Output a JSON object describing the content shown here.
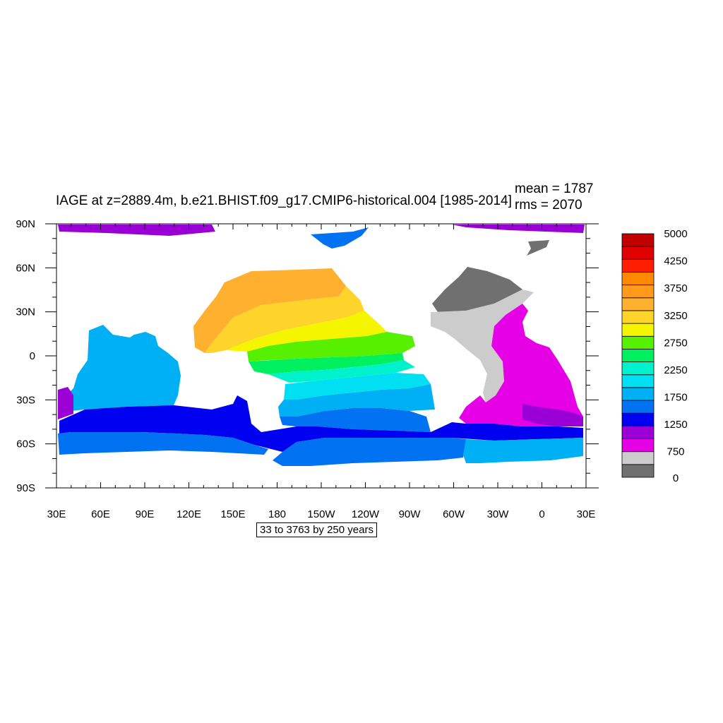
{
  "title": "IAGE at z=2889.4m, b.e21.BHIST.f09_g17.CMIP6-historical.004 [1985-2014]",
  "stats": {
    "mean": "mean = 1787",
    "rms": "rms = 2070"
  },
  "info_label": "33 to 3763 by 250 years",
  "lon_labels": [
    "30E",
    "60E",
    "90E",
    "120E",
    "150E",
    "180",
    "150W",
    "120W",
    "90W",
    "60W",
    "30W",
    "0",
    "30E"
  ],
  "lat_labels": [
    "90N",
    "60N",
    "30N",
    "0",
    "30S",
    "60S",
    "90S"
  ],
  "colorbar": {
    "colors": [
      "#707070",
      "#cccccc",
      "#e600e6",
      "#9a00d6",
      "#0000f0",
      "#0072f2",
      "#00b0f4",
      "#00e0f2",
      "#00f2cc",
      "#00f060",
      "#56f000",
      "#f5f500",
      "#ffd42a",
      "#ffb02e",
      "#ff9a1a",
      "#ff8a00",
      "#ff1e00",
      "#e00000",
      "#c00000"
    ],
    "labels": [
      "0",
      "750",
      "1250",
      "1750",
      "2250",
      "2750",
      "3250",
      "3750",
      "4250",
      "5000"
    ]
  },
  "chart_data": {
    "type": "heatmap",
    "variable": "IAGE",
    "units": "years",
    "mean": 1787,
    "rms": 2070,
    "contour_min": 33,
    "contour_max": 3763,
    "contour_interval": 250,
    "lon_range": [
      "30E",
      "30E"
    ],
    "lat_range": [
      "90S",
      "90N"
    ]
  }
}
